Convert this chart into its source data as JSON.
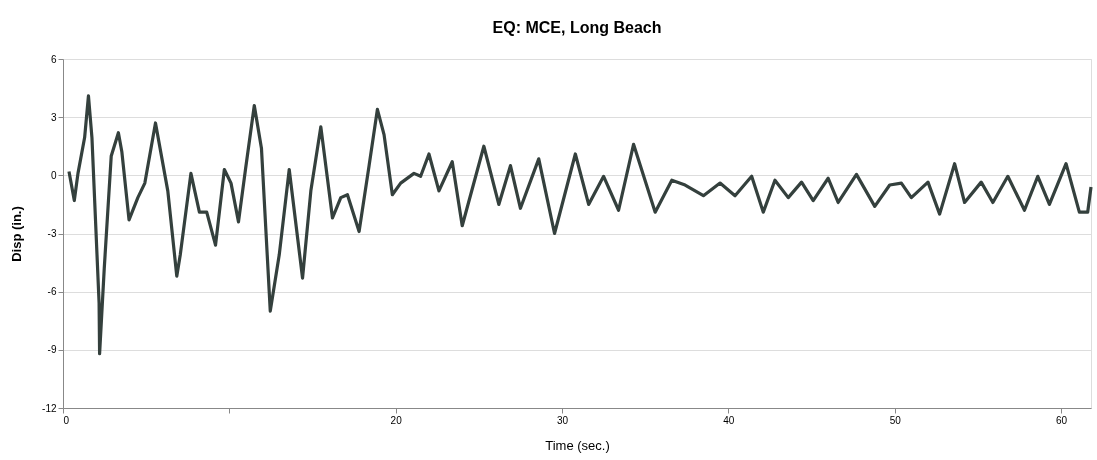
{
  "chart_data": {
    "type": "line",
    "title": "EQ: MCE, Long Beach",
    "xlabel": "Time (sec.)",
    "ylabel": "Disp (in.)",
    "xlim": [
      0,
      61.8
    ],
    "ylim": [
      -12,
      6
    ],
    "xticks": [
      0,
      {
        "value": 10,
        "label": null
      },
      20,
      30,
      40,
      50,
      60
    ],
    "yticks": [
      -12,
      -9,
      -6,
      -3,
      0,
      3,
      6
    ],
    "grid": "y",
    "marker": "none",
    "line_style": "solid",
    "series": [
      {
        "color": "#34403d",
        "x": [
          0.36,
          0.68,
          0.9,
          1.3,
          1.53,
          1.74,
          2.17,
          2.2,
          2.48,
          2.9,
          3.33,
          3.54,
          3.97,
          4.5,
          4.92,
          5.56,
          6.3,
          6.84,
          7.05,
          7.69,
          8.2,
          8.64,
          9.17,
          9.7,
          10.1,
          10.55,
          10.97,
          11.5,
          11.93,
          12.46,
          13.0,
          13.6,
          14.4,
          14.9,
          15.5,
          16.2,
          16.7,
          17.1,
          17.8,
          18.4,
          18.9,
          19.3,
          19.8,
          20.3,
          21.1,
          21.5,
          22.0,
          22.6,
          23.4,
          24.0,
          25.3,
          26.2,
          26.9,
          27.5,
          28.6,
          29.55,
          30.8,
          31.6,
          32.5,
          33.4,
          34.3,
          35.6,
          36.6,
          37.4,
          38.5,
          39.5,
          40.4,
          41.4,
          42.1,
          42.8,
          43.6,
          44.4,
          45.1,
          46.0,
          46.6,
          47.7,
          48.8,
          49.7,
          50.4,
          51.0,
          52.0,
          52.7,
          53.6,
          54.2,
          55.2,
          55.9,
          56.8,
          57.8,
          58.6,
          59.3,
          60.3,
          61.1,
          61.6,
          61.8
        ],
        "values": [
          0.2,
          -1.3,
          0.1,
          1.95,
          4.1,
          1.95,
          -6.6,
          -9.2,
          -4.8,
          1.0,
          2.2,
          1.2,
          -2.3,
          -1.15,
          -0.4,
          2.7,
          -0.8,
          -5.2,
          -4.1,
          0.1,
          -1.9,
          -1.9,
          -3.6,
          0.3,
          -0.4,
          -2.4,
          0.3,
          3.6,
          1.4,
          -7.0,
          -4.1,
          0.3,
          -5.3,
          -0.8,
          2.5,
          -2.2,
          -1.15,
          -1.0,
          -2.9,
          0.5,
          3.4,
          2.1,
          -1.0,
          -0.4,
          0.1,
          -0.05,
          1.1,
          -0.8,
          0.7,
          -2.6,
          1.5,
          -1.5,
          0.5,
          -1.7,
          0.85,
          -3.0,
          1.1,
          -1.5,
          -0.05,
          -1.8,
          1.6,
          -1.9,
          -0.25,
          -0.5,
          -1.05,
          -0.4,
          -1.05,
          -0.05,
          -1.9,
          -0.25,
          -1.15,
          -0.35,
          -1.3,
          -0.15,
          -1.4,
          0.05,
          -1.6,
          -0.5,
          -0.4,
          -1.15,
          -0.35,
          -2.0,
          0.6,
          -1.4,
          -0.35,
          -1.4,
          -0.05,
          -1.8,
          -0.05,
          -1.5,
          0.6,
          -1.9,
          -1.9,
          -0.6
        ]
      }
    ]
  }
}
